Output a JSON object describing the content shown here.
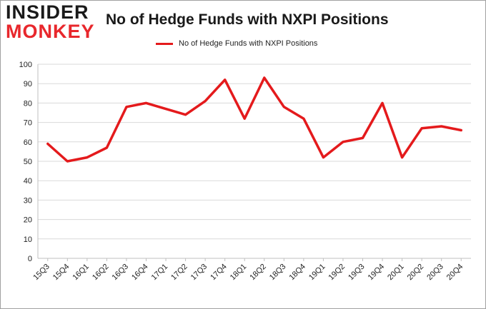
{
  "logo": {
    "line1": "INSIDER",
    "line2": "MONKEY"
  },
  "chart_data": {
    "type": "line",
    "title": "No of Hedge Funds with NXPI Positions",
    "xlabel": "",
    "ylabel": "",
    "categories": [
      "15Q3",
      "15Q4",
      "16Q1",
      "16Q2",
      "16Q3",
      "16Q4",
      "17Q1",
      "17Q2",
      "17Q3",
      "17Q4",
      "18Q1",
      "18Q2",
      "18Q3",
      "18Q4",
      "19Q1",
      "19Q2",
      "19Q3",
      "19Q4",
      "20Q1",
      "20Q2",
      "20Q3",
      "20Q4"
    ],
    "series": [
      {
        "name": "No of Hedge Funds with NXPI Positions",
        "values": [
          59,
          50,
          52,
          57,
          78,
          80,
          77,
          74,
          81,
          92,
          72,
          93,
          78,
          72,
          52,
          60,
          62,
          80,
          52,
          67,
          68,
          66
        ]
      }
    ],
    "ylim": [
      0,
      100
    ],
    "yticks": [
      0,
      10,
      20,
      30,
      40,
      50,
      60,
      70,
      80,
      90,
      100
    ],
    "grid": true,
    "legend_position": "top",
    "line_color": "#e41a1c"
  }
}
